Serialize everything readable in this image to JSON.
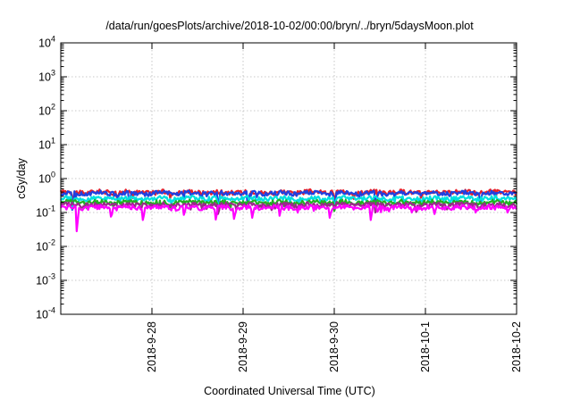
{
  "chart_data": {
    "type": "line",
    "title": "/data/run/goesPlots/archive/2018-10-02/00:00/bryn/../bryn/5daysMoon.plot",
    "xlabel": "Coordinated Universal Time (UTC)",
    "ylabel": "cGy/day",
    "y_scale": "log",
    "ylim": [
      0.0001,
      10000
    ],
    "y_ticks": [
      {
        "value": 0.0001,
        "base": "10",
        "exp": "-4"
      },
      {
        "value": 0.001,
        "base": "10",
        "exp": "-3"
      },
      {
        "value": 0.01,
        "base": "10",
        "exp": "-2"
      },
      {
        "value": 0.1,
        "base": "10",
        "exp": "-1"
      },
      {
        "value": 1,
        "base": "10",
        "exp": "0"
      },
      {
        "value": 10,
        "base": "10",
        "exp": "1"
      },
      {
        "value": 100,
        "base": "10",
        "exp": "2"
      },
      {
        "value": 1000,
        "base": "10",
        "exp": "3"
      },
      {
        "value": 10000,
        "base": "10",
        "exp": "4"
      }
    ],
    "xlim": [
      "2018-09-27T00:00",
      "2018-10-02T00:00"
    ],
    "x_ticks": [
      "2018-9-28",
      "2018-9-29",
      "2018-9-30",
      "2018-10-1",
      "2018-10-2"
    ],
    "grid": true,
    "series": [
      {
        "color": "#e8202a",
        "base": 0.4,
        "dips": [
          {
            "x": 0.12,
            "y": 0.22
          },
          {
            "x": 1.2,
            "y": 0.26
          },
          {
            "x": 2.05,
            "y": 0.25
          },
          {
            "x": 3.0,
            "y": 0.24
          },
          {
            "x": 3.95,
            "y": 0.27
          }
        ]
      },
      {
        "color": "#2040e0",
        "base": 0.37,
        "dips": [
          {
            "x": 0.12,
            "y": 0.12
          },
          {
            "x": 0.75,
            "y": 0.18
          },
          {
            "x": 1.72,
            "y": 0.13
          },
          {
            "x": 2.05,
            "y": 0.14
          },
          {
            "x": 3.0,
            "y": 0.14
          },
          {
            "x": 3.45,
            "y": 0.15
          },
          {
            "x": 4.6,
            "y": 0.18
          }
        ]
      },
      {
        "color": "#00e0e0",
        "base": 0.26,
        "dips": [
          {
            "x": 0.12,
            "y": 0.13
          },
          {
            "x": 1.72,
            "y": 0.12
          },
          {
            "x": 3.0,
            "y": 0.13
          }
        ]
      },
      {
        "color": "#20b020",
        "base": 0.2,
        "dips": [
          {
            "x": 1.72,
            "y": 0.1
          },
          {
            "x": 3.0,
            "y": 0.11
          }
        ]
      },
      {
        "color": "#9a2a8a",
        "base": 0.17,
        "dips": [
          {
            "x": 1.72,
            "y": 0.09
          },
          {
            "x": 3.45,
            "y": 0.1
          }
        ]
      },
      {
        "color": "#ff00ff",
        "base": 0.14,
        "dips": [
          {
            "x": 0.18,
            "y": 0.028
          },
          {
            "x": 0.55,
            "y": 0.075
          },
          {
            "x": 0.9,
            "y": 0.06
          },
          {
            "x": 1.35,
            "y": 0.085
          },
          {
            "x": 1.7,
            "y": 0.062
          },
          {
            "x": 1.9,
            "y": 0.065
          },
          {
            "x": 2.1,
            "y": 0.07
          },
          {
            "x": 2.4,
            "y": 0.08
          },
          {
            "x": 2.95,
            "y": 0.07
          },
          {
            "x": 3.4,
            "y": 0.06
          },
          {
            "x": 3.85,
            "y": 0.1
          },
          {
            "x": 4.1,
            "y": 0.09
          },
          {
            "x": 4.55,
            "y": 0.1
          },
          {
            "x": 4.9,
            "y": 0.1
          }
        ]
      }
    ]
  }
}
